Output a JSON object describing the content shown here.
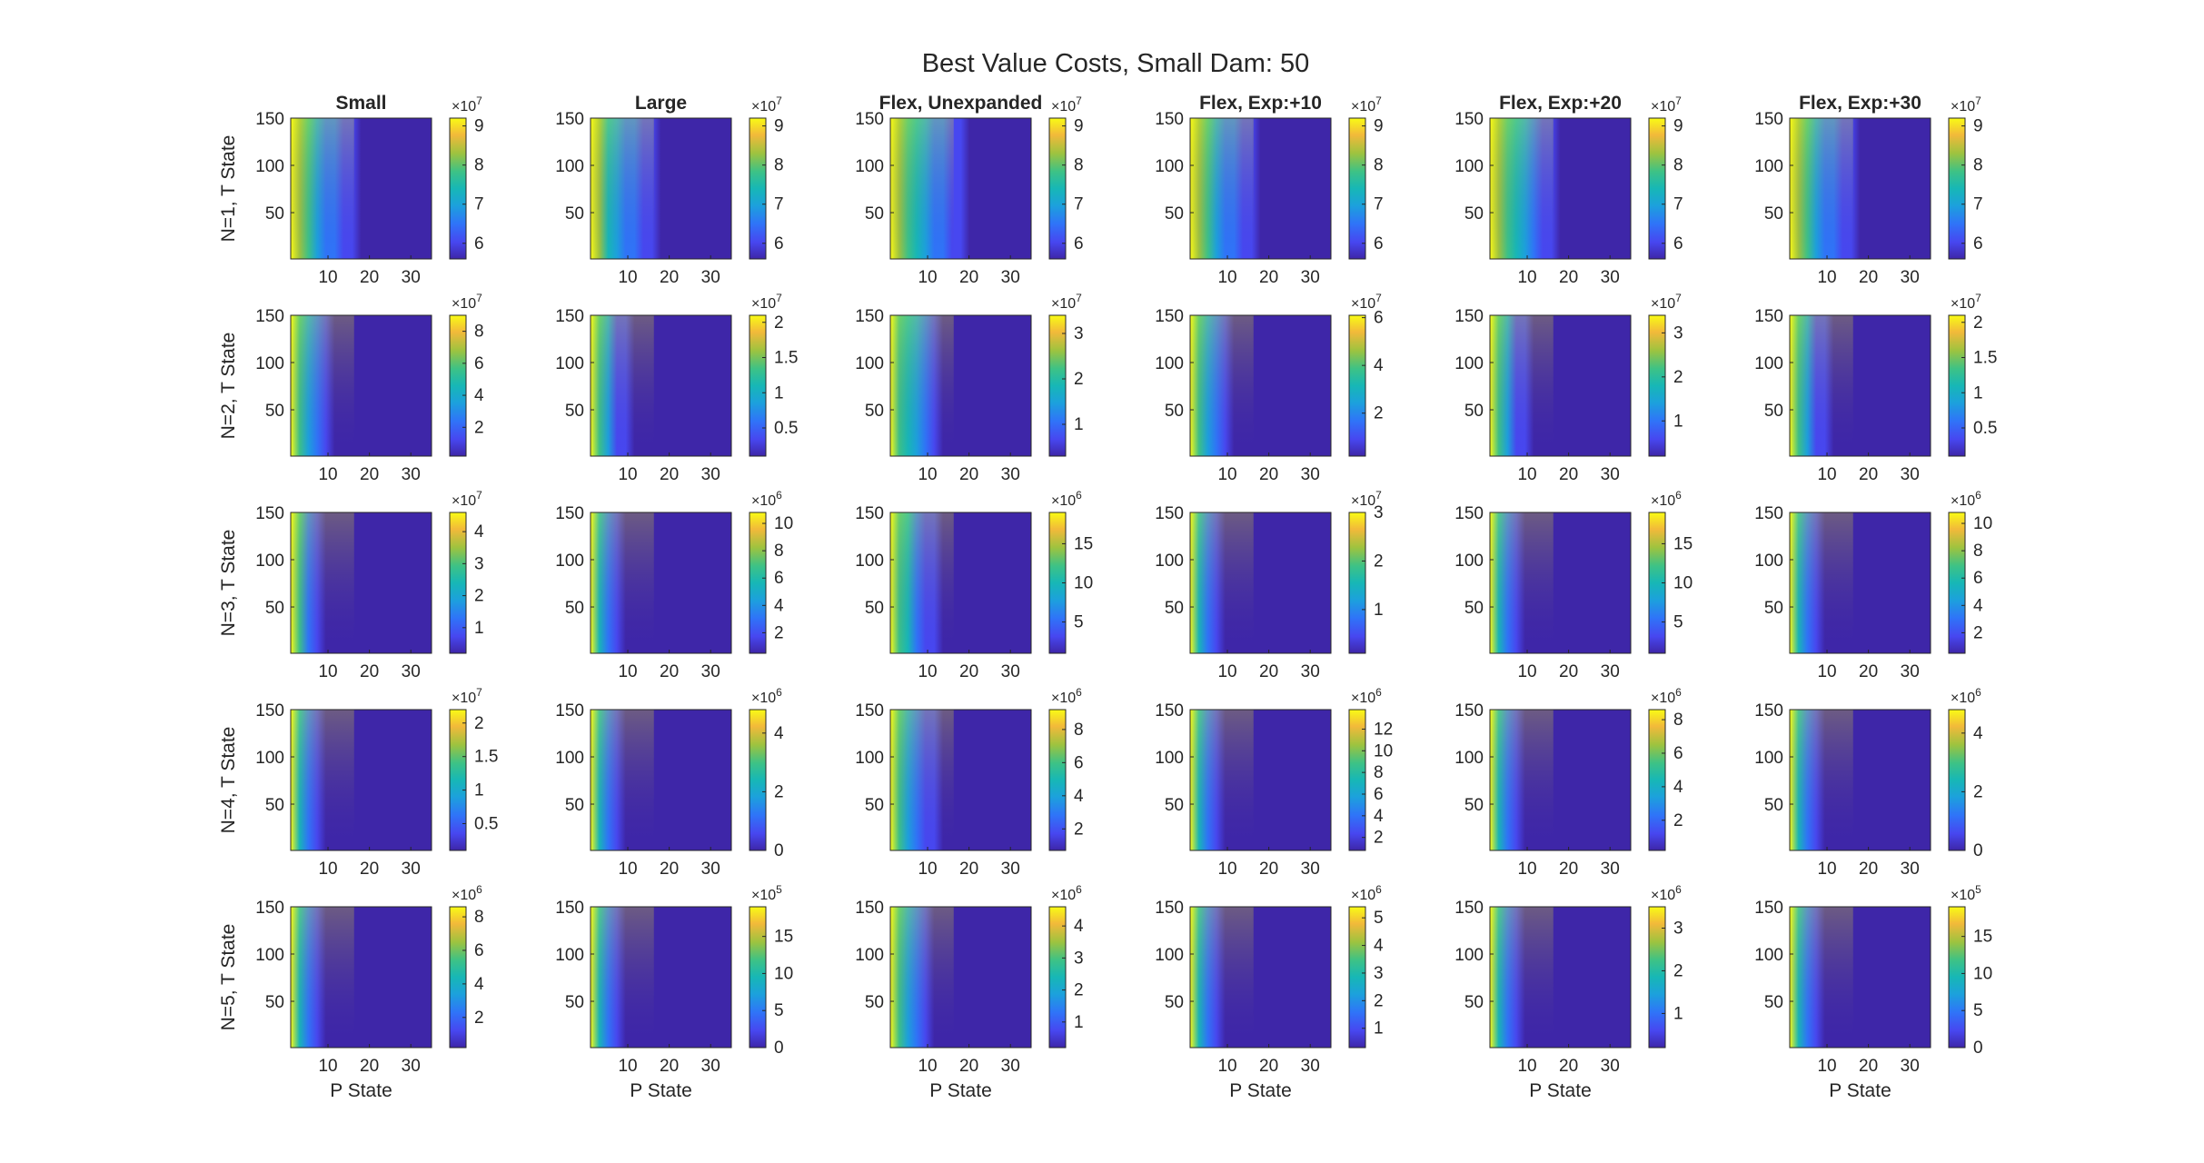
{
  "figure": {
    "title": "Best Value Costs, Small Dam: 50",
    "columns": [
      "Small",
      "Large",
      "Flex, Unexpanded",
      "Flex, Exp:+10",
      "Flex, Exp:+20",
      "Flex, Exp:+30"
    ],
    "row_labels": [
      "N=1, T State",
      "N=2, T State",
      "N=3, T State",
      "N=4, T State",
      "N=5, T State"
    ],
    "x_axis_label": "P State",
    "x_ticks": [
      "10",
      "20",
      "30"
    ],
    "y_ticks": [
      "50",
      "100",
      "150"
    ]
  },
  "chart_data": {
    "type": "heatmap",
    "colormap": "parula",
    "x_range": [
      1,
      35
    ],
    "y_range": [
      1,
      150
    ],
    "x_ticks": [
      10,
      20,
      30
    ],
    "y_ticks": [
      50,
      100,
      150
    ],
    "grid": false,
    "colorbars": [
      [
        {
          "exp": "7",
          "min": 5.6,
          "max": 9.2,
          "ticks": [
            "6",
            "7",
            "8",
            "9"
          ],
          "tickvals": [
            6,
            7,
            8,
            9
          ],
          "bias": 1.1
        },
        {
          "exp": "7",
          "min": 5.6,
          "max": 9.2,
          "ticks": [
            "6",
            "7",
            "8",
            "9"
          ],
          "tickvals": [
            6,
            7,
            8,
            9
          ],
          "bias": 1.2
        },
        {
          "exp": "7",
          "min": 5.6,
          "max": 9.2,
          "ticks": [
            "6",
            "7",
            "8",
            "9"
          ],
          "tickvals": [
            6,
            7,
            8,
            9
          ],
          "bias": 0.85
        },
        {
          "exp": "7",
          "min": 5.6,
          "max": 9.2,
          "ticks": [
            "6",
            "7",
            "8",
            "9"
          ],
          "tickvals": [
            6,
            7,
            8,
            9
          ],
          "bias": 1.1
        },
        {
          "exp": "7",
          "min": 5.6,
          "max": 9.2,
          "ticks": [
            "6",
            "7",
            "8",
            "9"
          ],
          "tickvals": [
            6,
            7,
            8,
            9
          ],
          "bias": 1.0
        },
        {
          "exp": "7",
          "min": 5.6,
          "max": 9.2,
          "ticks": [
            "6",
            "7",
            "8",
            "9"
          ],
          "tickvals": [
            6,
            7,
            8,
            9
          ],
          "bias": 1.1
        }
      ],
      [
        {
          "exp": "7",
          "min": 0.2,
          "max": 9.0,
          "ticks": [
            "2",
            "4",
            "6",
            "8"
          ],
          "tickvals": [
            2,
            4,
            6,
            8
          ],
          "bias": 2.4
        },
        {
          "exp": "7",
          "min": 0.1,
          "max": 2.1,
          "ticks": [
            "0.5",
            "1",
            "1.5",
            "2"
          ],
          "tickvals": [
            0.5,
            1,
            1.5,
            2
          ],
          "bias": 2.8
        },
        {
          "exp": "7",
          "min": 0.3,
          "max": 3.4,
          "ticks": [
            "1",
            "2",
            "3"
          ],
          "tickvals": [
            1,
            2,
            3
          ],
          "bias": 1.6
        },
        {
          "exp": "7",
          "min": 0.2,
          "max": 6.1,
          "ticks": [
            "2",
            "4",
            "6"
          ],
          "tickvals": [
            2,
            4,
            6
          ],
          "bias": 2.5
        },
        {
          "exp": "7",
          "min": 0.2,
          "max": 3.4,
          "ticks": [
            "1",
            "2",
            "3"
          ],
          "tickvals": [
            1,
            2,
            3
          ],
          "bias": 2.7
        },
        {
          "exp": "7",
          "min": 0.1,
          "max": 2.1,
          "ticks": [
            "0.5",
            "1",
            "1.5",
            "2"
          ],
          "tickvals": [
            0.5,
            1,
            1.5,
            2
          ],
          "bias": 2.8
        }
      ],
      [
        {
          "exp": "7",
          "min": 0.2,
          "max": 4.6,
          "ticks": [
            "1",
            "2",
            "3",
            "4"
          ],
          "tickvals": [
            1,
            2,
            3,
            4
          ],
          "bias": 2.9
        },
        {
          "exp": "6",
          "min": 0.5,
          "max": 10.8,
          "ticks": [
            "2",
            "4",
            "6",
            "8",
            "10"
          ],
          "tickvals": [
            2,
            4,
            6,
            8,
            10
          ],
          "bias": 3.1
        },
        {
          "exp": "6",
          "min": 1.0,
          "max": 19.0,
          "ticks": [
            "5",
            "10",
            "15"
          ],
          "tickvals": [
            5,
            10,
            15
          ],
          "bias": 1.9
        },
        {
          "exp": "7",
          "min": 0.1,
          "max": 3.0,
          "ticks": [
            "1",
            "2",
            "3"
          ],
          "tickvals": [
            1,
            2,
            3
          ],
          "bias": 3.1
        },
        {
          "exp": "6",
          "min": 1.0,
          "max": 19.0,
          "ticks": [
            "5",
            "10",
            "15"
          ],
          "tickvals": [
            5,
            10,
            15
          ],
          "bias": 3.2
        },
        {
          "exp": "6",
          "min": 0.5,
          "max": 10.8,
          "ticks": [
            "2",
            "4",
            "6",
            "8",
            "10"
          ],
          "tickvals": [
            2,
            4,
            6,
            8,
            10
          ],
          "bias": 3.1
        }
      ],
      [
        {
          "exp": "7",
          "min": 0.1,
          "max": 2.2,
          "ticks": [
            "0.5",
            "1",
            "1.5",
            "2"
          ],
          "tickvals": [
            0.5,
            1,
            1.5,
            2
          ],
          "bias": 3.2
        },
        {
          "exp": "6",
          "min": 0.0,
          "max": 4.8,
          "ticks": [
            "0",
            "2",
            "4"
          ],
          "tickvals": [
            0,
            2,
            4
          ],
          "bias": 3.3
        },
        {
          "exp": "6",
          "min": 0.7,
          "max": 9.2,
          "ticks": [
            "2",
            "4",
            "6",
            "8"
          ],
          "tickvals": [
            2,
            4,
            6,
            8
          ],
          "bias": 2.1
        },
        {
          "exp": "6",
          "min": 0.8,
          "max": 13.8,
          "ticks": [
            "2",
            "4",
            "6",
            "8",
            "10",
            "12"
          ],
          "tickvals": [
            2,
            4,
            6,
            8,
            10,
            12
          ],
          "bias": 3.4
        },
        {
          "exp": "6",
          "min": 0.2,
          "max": 8.6,
          "ticks": [
            "2",
            "4",
            "6",
            "8"
          ],
          "tickvals": [
            2,
            4,
            6,
            8
          ],
          "bias": 3.4
        },
        {
          "exp": "6",
          "min": 0.0,
          "max": 4.8,
          "ticks": [
            "0",
            "2",
            "4"
          ],
          "tickvals": [
            0,
            2,
            4
          ],
          "bias": 3.3
        }
      ],
      [
        {
          "exp": "6",
          "min": 0.2,
          "max": 8.6,
          "ticks": [
            "2",
            "4",
            "6",
            "8"
          ],
          "tickvals": [
            2,
            4,
            6,
            8
          ],
          "bias": 3.4
        },
        {
          "exp": "5",
          "min": 0.0,
          "max": 19.0,
          "ticks": [
            "0",
            "5",
            "10",
            "15"
          ],
          "tickvals": [
            0,
            5,
            10,
            15
          ],
          "bias": 3.5
        },
        {
          "exp": "6",
          "min": 0.2,
          "max": 4.6,
          "ticks": [
            "1",
            "2",
            "3",
            "4"
          ],
          "tickvals": [
            1,
            2,
            3,
            4
          ],
          "bias": 2.2
        },
        {
          "exp": "6",
          "min": 0.3,
          "max": 5.4,
          "ticks": [
            "1",
            "2",
            "3",
            "4",
            "5"
          ],
          "tickvals": [
            1,
            2,
            3,
            4,
            5
          ],
          "bias": 3.6
        },
        {
          "exp": "6",
          "min": 0.2,
          "max": 3.5,
          "ticks": [
            "1",
            "2",
            "3"
          ],
          "tickvals": [
            1,
            2,
            3
          ],
          "bias": 3.6
        },
        {
          "exp": "5",
          "min": 0.0,
          "max": 19.0,
          "ticks": [
            "0",
            "5",
            "10",
            "15"
          ],
          "tickvals": [
            0,
            5,
            10,
            15
          ],
          "bias": 3.5
        }
      ]
    ]
  }
}
